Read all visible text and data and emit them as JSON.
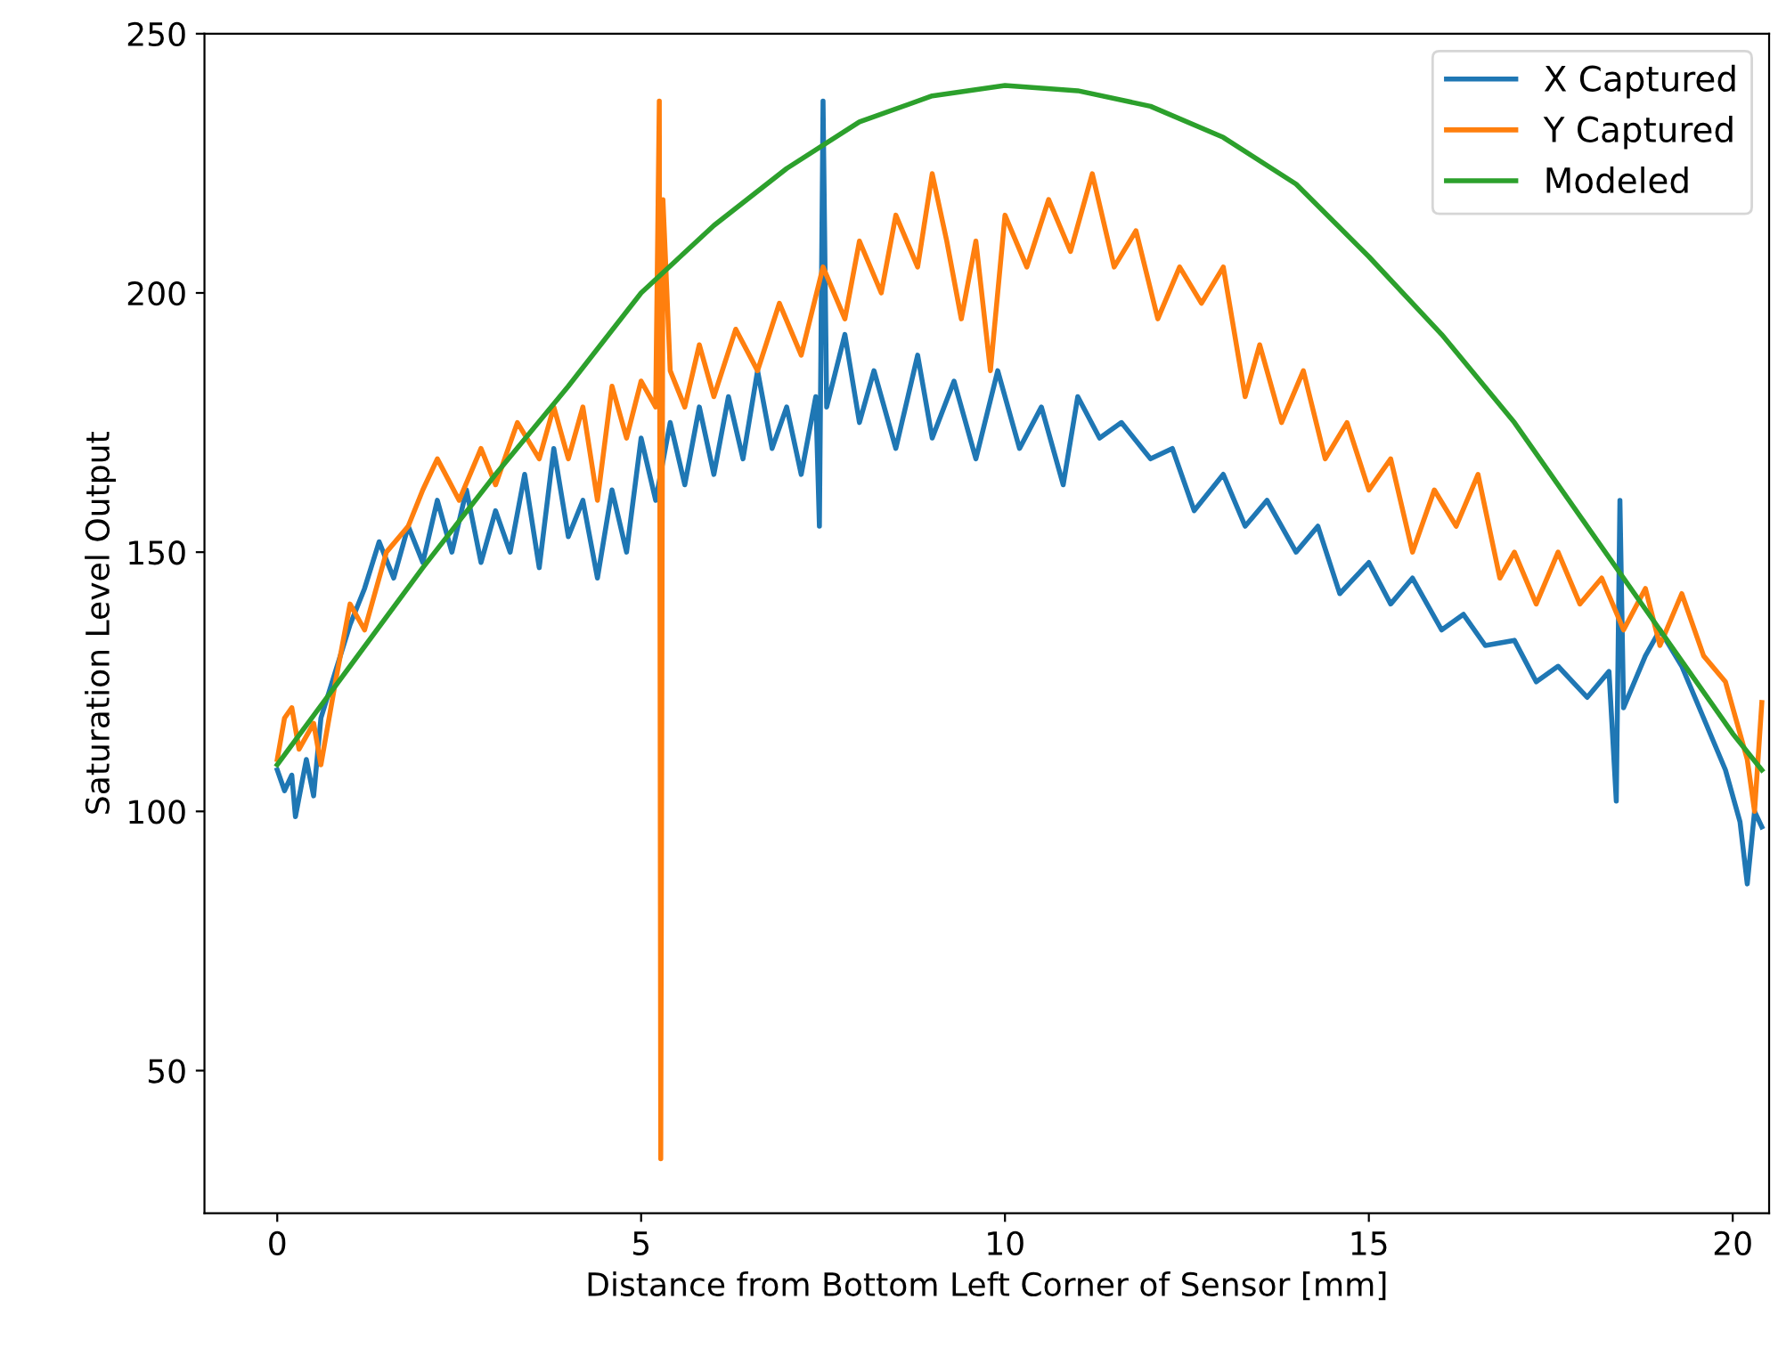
{
  "chart_data": {
    "type": "line",
    "xlabel": "Distance from Bottom Left Corner of Sensor [mm]",
    "ylabel": "Saturation Level Output",
    "xlim": [
      -1.0,
      20.5
    ],
    "ylim": [
      22.5,
      250
    ],
    "xticks": [
      0,
      5,
      10,
      15,
      20
    ],
    "yticks": [
      50,
      100,
      150,
      200,
      250
    ],
    "grid": false,
    "legend": "top right",
    "series": [
      {
        "name": "X Captured",
        "color": "#1f77b4",
        "x": [
          0,
          0.1,
          0.2,
          0.25,
          0.4,
          0.5,
          0.6,
          0.8,
          1.0,
          1.2,
          1.4,
          1.6,
          1.8,
          2.0,
          2.2,
          2.4,
          2.6,
          2.8,
          3.0,
          3.2,
          3.4,
          3.6,
          3.8,
          4.0,
          4.2,
          4.4,
          4.6,
          4.8,
          5.0,
          5.2,
          5.4,
          5.6,
          5.8,
          6.0,
          6.2,
          6.4,
          6.6,
          6.8,
          7.0,
          7.2,
          7.4,
          7.45,
          7.5,
          7.55,
          7.8,
          8.0,
          8.2,
          8.5,
          8.8,
          9.0,
          9.3,
          9.6,
          9.9,
          10.2,
          10.5,
          10.8,
          11.0,
          11.3,
          11.6,
          12.0,
          12.3,
          12.6,
          13.0,
          13.3,
          13.6,
          14.0,
          14.3,
          14.6,
          15.0,
          15.3,
          15.6,
          16.0,
          16.3,
          16.6,
          17.0,
          17.3,
          17.6,
          18.0,
          18.3,
          18.4,
          18.45,
          18.5,
          18.8,
          19.0,
          19.3,
          19.6,
          19.9,
          20.1,
          20.2,
          20.3,
          20.4
        ],
        "values": [
          108,
          104,
          107,
          99,
          110,
          103,
          118,
          127,
          136,
          143,
          152,
          145,
          155,
          148,
          160,
          150,
          162,
          148,
          158,
          150,
          165,
          147,
          170,
          153,
          160,
          145,
          162,
          150,
          172,
          160,
          175,
          163,
          178,
          165,
          180,
          168,
          185,
          170,
          178,
          165,
          180,
          155,
          237,
          178,
          192,
          175,
          185,
          170,
          188,
          172,
          183,
          168,
          185,
          170,
          178,
          163,
          180,
          172,
          175,
          168,
          170,
          158,
          165,
          155,
          160,
          150,
          155,
          142,
          148,
          140,
          145,
          135,
          138,
          132,
          133,
          125,
          128,
          122,
          127,
          102,
          160,
          120,
          130,
          135,
          128,
          118,
          108,
          98,
          86,
          100,
          97
        ]
      },
      {
        "name": "Y Captured",
        "color": "#ff7f0e",
        "x": [
          0,
          0.1,
          0.2,
          0.3,
          0.5,
          0.6,
          0.8,
          1.0,
          1.2,
          1.5,
          1.8,
          2.0,
          2.2,
          2.5,
          2.8,
          3.0,
          3.3,
          3.6,
          3.8,
          4.0,
          4.2,
          4.4,
          4.6,
          4.8,
          5.0,
          5.2,
          5.25,
          5.27,
          5.3,
          5.4,
          5.6,
          5.8,
          6.0,
          6.3,
          6.6,
          6.9,
          7.2,
          7.5,
          7.8,
          8.0,
          8.3,
          8.5,
          8.8,
          9.0,
          9.2,
          9.4,
          9.6,
          9.8,
          10.0,
          10.3,
          10.6,
          10.9,
          11.2,
          11.5,
          11.8,
          12.1,
          12.4,
          12.7,
          13.0,
          13.3,
          13.5,
          13.8,
          14.1,
          14.4,
          14.7,
          15.0,
          15.3,
          15.6,
          15.9,
          16.2,
          16.5,
          16.8,
          17.0,
          17.3,
          17.6,
          17.9,
          18.2,
          18.5,
          18.8,
          19.0,
          19.3,
          19.6,
          19.9,
          20.2,
          20.3,
          20.4
        ],
        "values": [
          110,
          118,
          120,
          112,
          117,
          109,
          125,
          140,
          135,
          150,
          155,
          162,
          168,
          160,
          170,
          163,
          175,
          168,
          178,
          168,
          178,
          160,
          182,
          172,
          183,
          178,
          237,
          33,
          218,
          185,
          178,
          190,
          180,
          193,
          185,
          198,
          188,
          205,
          195,
          210,
          200,
          215,
          205,
          223,
          210,
          195,
          210,
          185,
          215,
          205,
          218,
          208,
          223,
          205,
          212,
          195,
          205,
          198,
          205,
          180,
          190,
          175,
          185,
          168,
          175,
          162,
          168,
          150,
          162,
          155,
          165,
          145,
          150,
          140,
          150,
          140,
          145,
          135,
          143,
          132,
          142,
          130,
          125,
          110,
          100,
          121
        ]
      },
      {
        "name": "Modeled",
        "color": "#2ca02c",
        "x": [
          0,
          1,
          2,
          3,
          4,
          5,
          6,
          7,
          8,
          9,
          10,
          11,
          12,
          13,
          14,
          15,
          16,
          17,
          18,
          19,
          20,
          20.4
        ],
        "values": [
          109,
          128,
          147,
          165,
          182,
          200,
          213,
          224,
          233,
          238,
          240,
          239,
          236,
          230,
          221,
          207,
          192,
          175,
          155,
          135,
          115,
          108
        ]
      }
    ]
  }
}
